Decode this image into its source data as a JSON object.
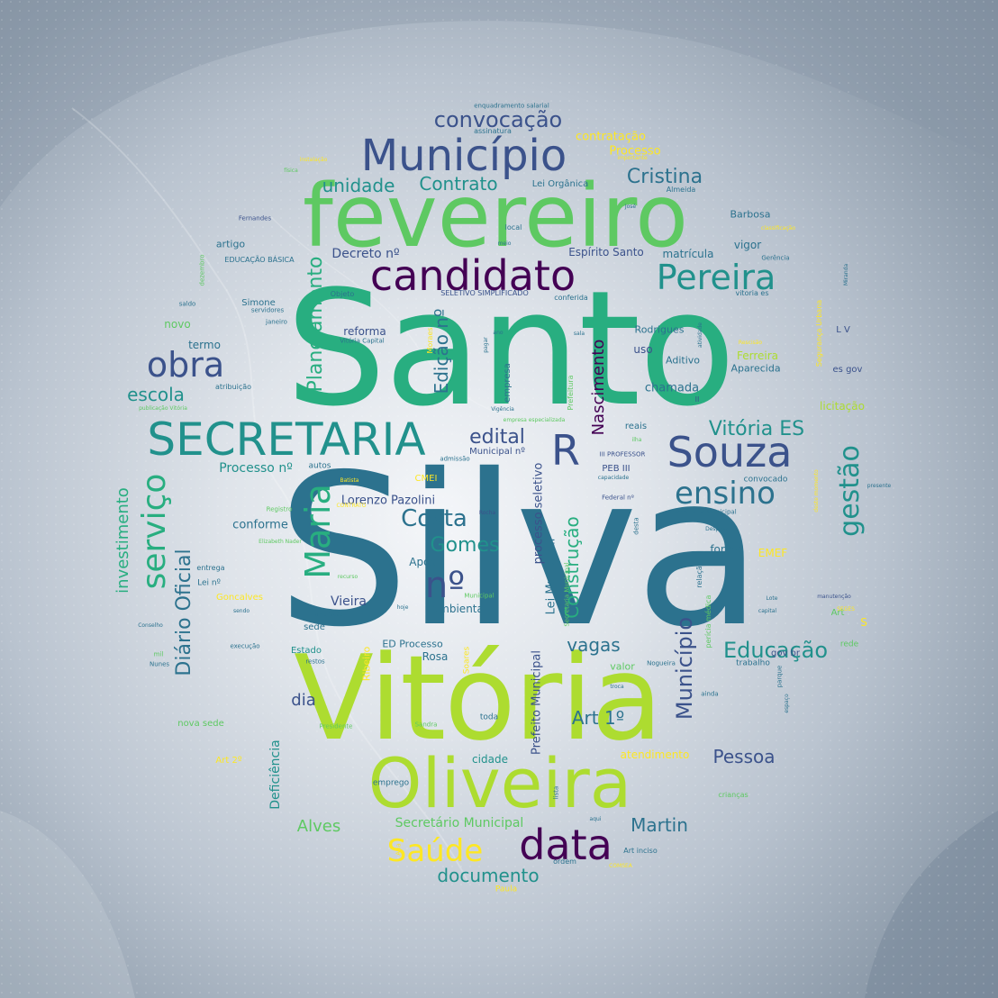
{
  "palette": {
    "c0": "#440154",
    "c1": "#3b528b",
    "c2": "#2c728e",
    "c3": "#21918c",
    "c4": "#28ae80",
    "c5": "#5ec962",
    "c6": "#addc30",
    "c7": "#fde725"
  },
  "words": [
    {
      "text": "Silva",
      "c": "c2"
    },
    {
      "text": "Santo",
      "c": "c4"
    },
    {
      "text": "Vitória",
      "c": "c6"
    },
    {
      "text": "fevereiro",
      "c": "c5"
    },
    {
      "text": "Oliveira",
      "c": "c6"
    },
    {
      "text": "candidato",
      "c": "c0"
    },
    {
      "text": "Município",
      "c": "c1"
    },
    {
      "text": "SECRETARIA",
      "c": "c3"
    },
    {
      "text": "Souza",
      "c": "c1"
    },
    {
      "text": "Pereira",
      "c": "c3"
    },
    {
      "text": "obra",
      "c": "c1"
    },
    {
      "text": "R",
      "c": "c1"
    },
    {
      "text": "data",
      "c": "c0"
    },
    {
      "text": "Saúde",
      "c": "c7"
    },
    {
      "text": "ensino",
      "c": "c2"
    },
    {
      "text": "convocação",
      "c": "c1"
    },
    {
      "text": "nº",
      "c": "c1"
    },
    {
      "text": "Maria",
      "c": "c4"
    },
    {
      "text": "serviço",
      "c": "c4"
    },
    {
      "text": "gestão",
      "c": "c3"
    },
    {
      "text": "Cristina",
      "c": "c2"
    },
    {
      "text": "Contrato",
      "c": "c3"
    },
    {
      "text": "unidade",
      "c": "c3"
    },
    {
      "text": "Costa",
      "c": "c2"
    },
    {
      "text": "Gomes",
      "c": "c3"
    },
    {
      "text": "edital",
      "c": "c1"
    },
    {
      "text": "Vitória ES",
      "c": "c3"
    },
    {
      "text": "Educação",
      "c": "c3"
    },
    {
      "text": "Município",
      "c": "c1"
    },
    {
      "text": "escola",
      "c": "c3"
    },
    {
      "text": "Planejamento",
      "c": "c4"
    },
    {
      "text": "Edição nº",
      "c": "c2"
    },
    {
      "text": "Nascimento",
      "c": "c0"
    },
    {
      "text": "Diário Oficial",
      "c": "c2"
    },
    {
      "text": "investimento",
      "c": "c4"
    },
    {
      "text": "Construção",
      "c": "c4"
    },
    {
      "text": "vagas",
      "c": "c2"
    },
    {
      "text": "Art 1º",
      "c": "c2"
    },
    {
      "text": "Pessoa",
      "c": "c1"
    },
    {
      "text": "Martin",
      "c": "c2"
    },
    {
      "text": "documento",
      "c": "c3"
    },
    {
      "text": "Alves",
      "c": "c5"
    },
    {
      "text": "dia",
      "c": "c1"
    },
    {
      "text": "Deficiência",
      "c": "c3"
    },
    {
      "text": "Secretário Municipal",
      "c": "c5"
    },
    {
      "text": "Decreto nº",
      "c": "c1"
    },
    {
      "text": "Lorenzo Pazolini",
      "c": "c1"
    },
    {
      "text": "conforme",
      "c": "c2"
    },
    {
      "text": "Vieira",
      "c": "c1"
    },
    {
      "text": "Processo nº",
      "c": "c3"
    },
    {
      "text": "processo seletivo",
      "c": "c1"
    },
    {
      "text": "Lei Municipal",
      "c": "c2"
    },
    {
      "text": "Prefeito Municipal",
      "c": "c1"
    },
    {
      "text": "Espírito Santo",
      "c": "c1"
    },
    {
      "text": "matrícula",
      "c": "c2"
    },
    {
      "text": "vigor",
      "c": "c2"
    },
    {
      "text": "Barbosa",
      "c": "c2"
    },
    {
      "text": "Lei Orgânica",
      "c": "c2"
    },
    {
      "text": "contratação",
      "c": "c7"
    },
    {
      "text": "Processo",
      "c": "c7"
    },
    {
      "text": "chamada",
      "c": "c2"
    },
    {
      "text": "Aditivo",
      "c": "c2"
    },
    {
      "text": "Ferreira",
      "c": "c6"
    },
    {
      "text": "Aparecida",
      "c": "c2"
    },
    {
      "text": "licitação",
      "c": "c6"
    },
    {
      "text": "termo",
      "c": "c2"
    },
    {
      "text": "novo",
      "c": "c5"
    },
    {
      "text": "reforma",
      "c": "c1"
    },
    {
      "text": "Rodrigues",
      "c": "c2"
    },
    {
      "text": "uso",
      "c": "c1"
    },
    {
      "text": "forma",
      "c": "c2"
    },
    {
      "text": "EMEF",
      "c": "c7"
    },
    {
      "text": "Após",
      "c": "c2"
    },
    {
      "text": "ambiental",
      "c": "c2"
    },
    {
      "text": "Rosa",
      "c": "c2"
    },
    {
      "text": "ED Processo",
      "c": "c2"
    },
    {
      "text": "cidade",
      "c": "c3"
    },
    {
      "text": "atendimento",
      "c": "c7"
    },
    {
      "text": "valor",
      "c": "c5"
    },
    {
      "text": "artigo",
      "c": "c2"
    },
    {
      "text": "Simone",
      "c": "c2"
    },
    {
      "text": "Goncalves",
      "c": "c7"
    },
    {
      "text": "sede",
      "c": "c2"
    },
    {
      "text": "nova sede",
      "c": "c5"
    },
    {
      "text": "Art 2º",
      "c": "c7"
    },
    {
      "text": "emprego",
      "c": "c2"
    },
    {
      "text": "PEB III",
      "c": "c1"
    },
    {
      "text": "Municipal nº",
      "c": "c1"
    },
    {
      "text": "autos",
      "c": "c2"
    },
    {
      "text": "CMEI",
      "c": "c7"
    },
    {
      "text": "reais",
      "c": "c2"
    },
    {
      "text": "convocado",
      "c": "c2"
    },
    {
      "text": "gov br",
      "c": "c1"
    },
    {
      "text": "trabalho",
      "c": "c2"
    },
    {
      "text": "es gov",
      "c": "c1"
    },
    {
      "text": "toda",
      "c": "c2"
    },
    {
      "text": "Ribeiro",
      "c": "c7"
    },
    {
      "text": "empresa",
      "c": "c2"
    },
    {
      "text": "Estado",
      "c": "c3"
    },
    {
      "text": "Lei nº",
      "c": "c2"
    },
    {
      "text": "entrega",
      "c": "c2"
    },
    {
      "text": "atribuição",
      "c": "c2"
    },
    {
      "text": "II",
      "c": "c1"
    },
    {
      "text": "local",
      "c": "c2"
    },
    {
      "text": "EDUCAÇÃO BÁSICA",
      "c": "c2"
    },
    {
      "text": "Objeto",
      "c": "c2"
    },
    {
      "text": "SELETIVO SIMPLIFICADO",
      "c": "c1"
    },
    {
      "text": "conferida",
      "c": "c2"
    },
    {
      "text": "vitoria es",
      "c": "c2"
    },
    {
      "text": "assinatura",
      "c": "c2"
    },
    {
      "text": "enquadramento salarial",
      "c": "c2"
    },
    {
      "text": "Almeida",
      "c": "c2"
    },
    {
      "text": "Gerência",
      "c": "c2"
    },
    {
      "text": "janeiro",
      "c": "c2"
    },
    {
      "text": "servidores",
      "c": "c2"
    },
    {
      "text": "saldo",
      "c": "c2"
    },
    {
      "text": "Fernandes",
      "c": "c1"
    },
    {
      "text": "L V",
      "c": "c1"
    },
    {
      "text": "S",
      "c": "c7"
    },
    {
      "text": "Art",
      "c": "c5"
    },
    {
      "text": "rede",
      "c": "c5"
    },
    {
      "text": "Nogueira",
      "c": "c2"
    },
    {
      "text": "Sandra",
      "c": "c5"
    },
    {
      "text": "Presidente",
      "c": "c5"
    },
    {
      "text": "Soares",
      "c": "c7"
    },
    {
      "text": "Moraes",
      "c": "c7"
    },
    {
      "text": "Paula",
      "c": "c7"
    },
    {
      "text": "Art inciso",
      "c": "c2"
    },
    {
      "text": "ordem",
      "c": "c2"
    },
    {
      "text": "COMSEA",
      "c": "c7"
    },
    {
      "text": "crianças",
      "c": "c5"
    },
    {
      "text": "Vitória Capital",
      "c": "c2"
    },
    {
      "text": "publicação Vitória",
      "c": "c5"
    },
    {
      "text": "Elizabeth Nader",
      "c": "c5"
    },
    {
      "text": "Registro",
      "c": "c5"
    },
    {
      "text": "Secretaria Municipal",
      "c": "c2"
    },
    {
      "text": "Federal nº",
      "c": "c1"
    },
    {
      "text": "III PROFESSOR",
      "c": "c1"
    },
    {
      "text": "Prefeitura",
      "c": "c5"
    },
    {
      "text": "relação",
      "c": "c2"
    },
    {
      "text": "perícia médica",
      "c": "c5"
    },
    {
      "text": "Rocha",
      "c": "c1"
    },
    {
      "text": "Conselho",
      "c": "c2"
    },
    {
      "text": "execução",
      "c": "c2"
    },
    {
      "text": "mil",
      "c": "c5"
    },
    {
      "text": "Nunes",
      "c": "c2"
    },
    {
      "text": "restos",
      "c": "c2"
    },
    {
      "text": "hoje",
      "c": "c2"
    },
    {
      "text": "ampliação",
      "c": "c2"
    },
    {
      "text": "sendo",
      "c": "c2"
    },
    {
      "text": "recurso",
      "c": "c5"
    },
    {
      "text": "Municipal",
      "c": "c5"
    },
    {
      "text": "admissão",
      "c": "c2"
    },
    {
      "text": "Vigência",
      "c": "c2"
    },
    {
      "text": "empresa especializada",
      "c": "c5"
    },
    {
      "text": "Batista",
      "c": "c7"
    },
    {
      "text": "CONTRATO",
      "c": "c7"
    },
    {
      "text": "desta",
      "c": "c2"
    },
    {
      "text": "Despesa",
      "c": "c2"
    },
    {
      "text": "manutenção",
      "c": "c1"
    },
    {
      "text": "capital",
      "c": "c2"
    },
    {
      "text": "Lote",
      "c": "c2"
    },
    {
      "text": "SEGES",
      "c": "c7"
    },
    {
      "text": "presente",
      "c": "c2"
    },
    {
      "text": "capacidade",
      "c": "c2"
    },
    {
      "text": "ilha",
      "c": "c5"
    },
    {
      "text": "pagar",
      "c": "c2"
    },
    {
      "text": "ano",
      "c": "c2"
    },
    {
      "text": "sala",
      "c": "c2"
    },
    {
      "text": "meio",
      "c": "c2"
    },
    {
      "text": "José",
      "c": "c2"
    },
    {
      "text": "Miranda",
      "c": "c2"
    },
    {
      "text": "importante",
      "c": "c7"
    },
    {
      "text": "instalação",
      "c": "c7"
    },
    {
      "text": "física",
      "c": "c5"
    },
    {
      "text": "classificação",
      "c": "c7"
    },
    {
      "text": "ainda",
      "c": "c2"
    },
    {
      "text": "troca",
      "c": "c2"
    },
    {
      "text": "espaço",
      "c": "c2"
    },
    {
      "text": "parque",
      "c": "c2"
    },
    {
      "text": "aqui",
      "c": "c2"
    },
    {
      "text": "lista",
      "c": "c2"
    },
    {
      "text": "Ana",
      "c": "c7"
    },
    {
      "text": "atividade",
      "c": "c2"
    },
    {
      "text": "Rescisão",
      "c": "c7"
    },
    {
      "text": "dezembro",
      "c": "c5"
    },
    {
      "text": "deste momento",
      "c": "c7"
    },
    {
      "text": "Segurança Urbana",
      "c": "c7"
    },
    {
      "text": "Secretaria Municipal",
      "c": "c5"
    }
  ]
}
